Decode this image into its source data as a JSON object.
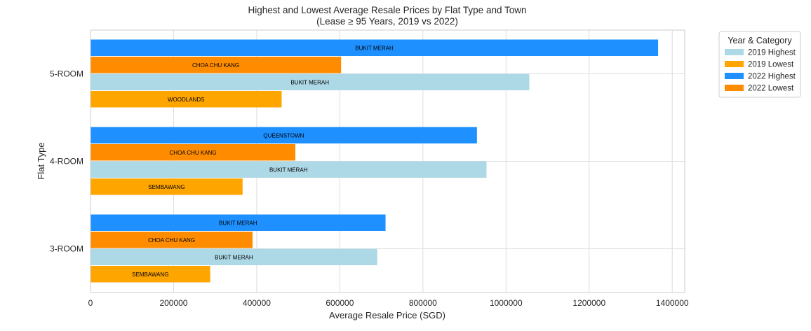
{
  "chart_data": {
    "type": "bar",
    "orientation": "horizontal",
    "title": "Highest and Lowest Average Resale Prices by Flat Type and Town",
    "subtitle": "(Lease ≥ 95 Years, 2019 vs 2022)",
    "xlabel": "Average Resale Price (SGD)",
    "ylabel": "Flat Type",
    "xlim": [
      0,
      1430000
    ],
    "xticks": [
      0,
      200000,
      400000,
      600000,
      800000,
      1000000,
      1200000,
      1400000
    ],
    "xtick_labels": [
      "0",
      "200000",
      "400000",
      "600000",
      "800000",
      "1000000",
      "1200000",
      "1400000"
    ],
    "grid": true,
    "legend_position": "outside-top-right",
    "legend_title": "Year & Category",
    "categories": [
      "5-ROOM",
      "4-ROOM",
      "3-ROOM"
    ],
    "series": [
      {
        "name": "2022 Highest",
        "color": "#1e90ff",
        "values": [
          1366000,
          930000,
          710000
        ],
        "towns": [
          "BUKIT MERAH",
          "QUEENSTOWN",
          "BUKIT MERAH"
        ]
      },
      {
        "name": "2022 Lowest",
        "color": "#ff8c00",
        "values": [
          603000,
          493000,
          390000
        ],
        "towns": [
          "CHOA CHU KANG",
          "CHOA CHU KANG",
          "CHOA CHU KANG"
        ]
      },
      {
        "name": "2019 Highest",
        "color": "#add8e6",
        "values": [
          1056000,
          953000,
          690000
        ],
        "towns": [
          "BUKIT MERAH",
          "BUKIT MERAH",
          "BUKIT MERAH"
        ]
      },
      {
        "name": "2019 Lowest",
        "color": "#ffa500",
        "values": [
          460000,
          366000,
          288000
        ],
        "towns": [
          "WOODLANDS",
          "SEMBAWANG",
          "SEMBAWANG"
        ]
      }
    ],
    "legend_entries": [
      "2019 Highest",
      "2019 Lowest",
      "2022 Highest",
      "2022 Lowest"
    ],
    "legend_colors": [
      "#add8e6",
      "#ffa500",
      "#1e90ff",
      "#ff8c00"
    ]
  }
}
